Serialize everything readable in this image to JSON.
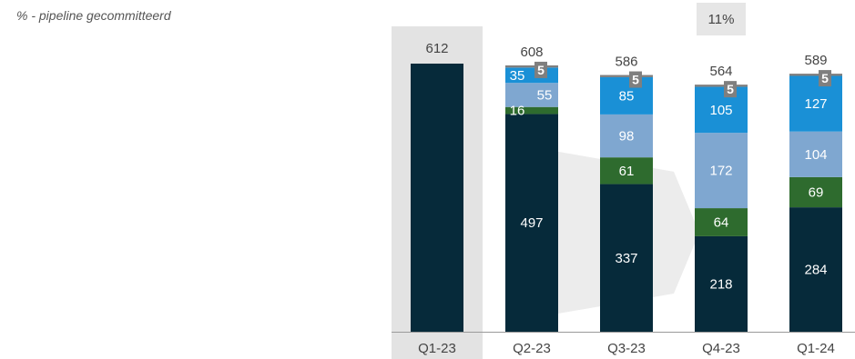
{
  "subtitle": "% - pipeline gecommitteerd",
  "chart_data": {
    "type": "bar",
    "stacked": true,
    "categories": [
      "Q1-23",
      "Q2-23",
      "Q3-23",
      "Q4-23",
      "Q1-24"
    ],
    "totals": [
      612,
      608,
      586,
      564,
      589
    ],
    "callout": "11%",
    "highlighted_category": "Q1-23",
    "series": [
      {
        "color": "#062a3a",
        "values": [
          612,
          497,
          337,
          218,
          284
        ]
      },
      {
        "color": "#2e6b2e",
        "values": [
          0,
          16,
          61,
          64,
          69
        ]
      },
      {
        "color": "#7fa7d0",
        "values": [
          0,
          55,
          98,
          172,
          104
        ]
      },
      {
        "color": "#1a90d6",
        "values": [
          0,
          35,
          85,
          105,
          127
        ]
      },
      {
        "color": "#7f7f7f",
        "values": [
          0,
          5,
          5,
          5,
          5
        ]
      }
    ],
    "ylim": [
      0,
      612
    ],
    "grid": false,
    "legend": "none"
  }
}
